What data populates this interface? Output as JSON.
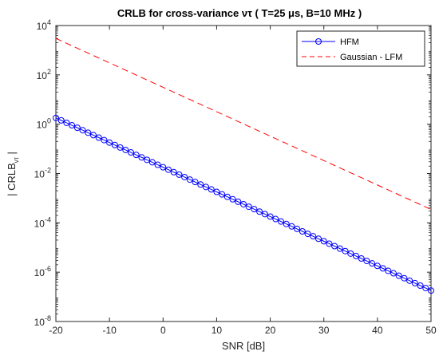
{
  "chart_data": {
    "type": "line",
    "title": "CRLB for cross-variance ντ ( T=25 μs, B=10 MHz )",
    "xlabel": "SNR [dB]",
    "ylabel": "| CRLB",
    "ylabel_subscript": "ντ",
    "ylabel_suffix": " |",
    "xlim": [
      -20,
      50
    ],
    "ylim": [
      1e-08,
      10000
    ],
    "yscale": "log",
    "x_ticks": [
      "-20",
      "-10",
      "0",
      "10",
      "20",
      "30",
      "40",
      "50"
    ],
    "y_ticks": [
      {
        "base": "10",
        "exp": "-8"
      },
      {
        "base": "10",
        "exp": "-6"
      },
      {
        "base": "10",
        "exp": "-4"
      },
      {
        "base": "10",
        "exp": "-2"
      },
      {
        "base": "10",
        "exp": "0"
      },
      {
        "base": "10",
        "exp": "2"
      },
      {
        "base": "10",
        "exp": "4"
      }
    ],
    "grid": false,
    "legend_position": "top-right",
    "series": [
      {
        "name": "HFM",
        "color": "#0000ff",
        "line_style": "solid",
        "marker": "circle",
        "x_start": -20,
        "x_end": 50,
        "x_step": 1,
        "y_start": 1.8,
        "y_end": 1.8e-07
      },
      {
        "name": "Gaussian - LFM",
        "color": "#ff0000",
        "line_style": "dashed",
        "marker": "none",
        "x_start": -20,
        "x_end": 50,
        "x_step": 1,
        "y_start": 3000,
        "y_end": 0.00035
      }
    ]
  }
}
